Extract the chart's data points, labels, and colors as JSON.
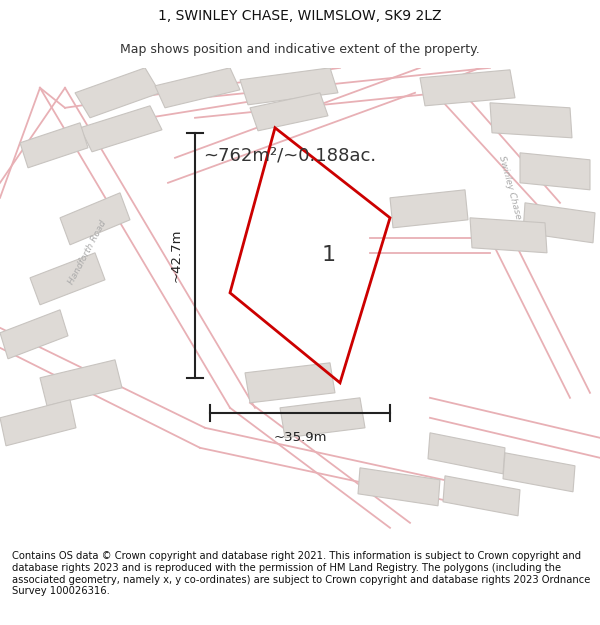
{
  "title_line1": "1, SWINLEY CHASE, WILMSLOW, SK9 2LZ",
  "title_line2": "Map shows position and indicative extent of the property.",
  "area_text": "~762m²/~0.188ac.",
  "label_1": "1",
  "dim_width": "~35.9m",
  "dim_height": "~42.7m",
  "footer_text": "Contains OS data © Crown copyright and database right 2021. This information is subject to Crown copyright and database rights 2023 and is reproduced with the permission of HM Land Registry. The polygons (including the associated geometry, namely x, y co-ordinates) are subject to Crown copyright and database rights 2023 Ordnance Survey 100026316.",
  "bg_color": "#ffffff",
  "map_bg_color": "#f2f0ee",
  "plot_outline_color": "#cc0000",
  "road_color": "#e8b0b5",
  "building_fill": "#dedad6",
  "building_edge": "#c8c4c0",
  "title_fontsize": 10,
  "subtitle_fontsize": 9,
  "footer_fontsize": 7.2,
  "road_label_color": "#aaaaaa",
  "dim_color": "#222222",
  "text_color": "#333333"
}
